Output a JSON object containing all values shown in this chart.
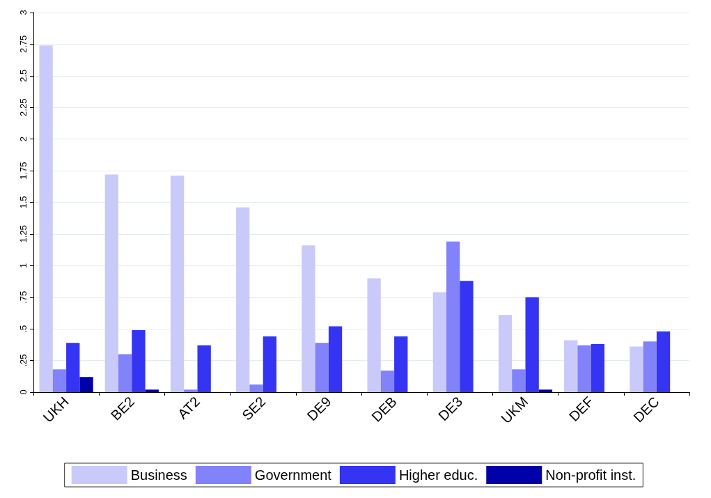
{
  "chart_data": {
    "type": "bar",
    "categories": [
      "UKH",
      "BE2",
      "AT2",
      "SE2",
      "DE9",
      "DEB",
      "DE3",
      "UKM",
      "DEF",
      "DEC"
    ],
    "series": [
      {
        "name": "Business",
        "color": "#cacafa",
        "values": [
          2.74,
          1.72,
          1.71,
          1.46,
          1.16,
          0.9,
          0.79,
          0.61,
          0.41,
          0.36
        ]
      },
      {
        "name": "Government",
        "color": "#8282fa",
        "values": [
          0.18,
          0.3,
          0.02,
          0.06,
          0.39,
          0.17,
          1.19,
          0.18,
          0.37,
          0.4
        ]
      },
      {
        "name": "Higher educ.",
        "color": "#3434f2",
        "values": [
          0.39,
          0.49,
          0.37,
          0.44,
          0.52,
          0.44,
          0.88,
          0.75,
          0.38,
          0.48
        ]
      },
      {
        "name": "Non-profit inst.",
        "color": "#0000a8",
        "values": [
          0.12,
          0.02,
          0,
          0,
          0,
          0,
          0,
          0.02,
          0,
          0
        ]
      }
    ],
    "ylim": [
      0,
      3
    ],
    "yticks": [
      0,
      {
        "value": 0.25,
        "label": ".25"
      },
      {
        "value": 0.5,
        "label": ".5"
      },
      {
        "value": 0.75,
        "label": ".75"
      },
      1,
      1.25,
      1.5,
      1.75,
      2,
      2.25,
      2.5,
      2.75,
      3
    ],
    "grid": "y",
    "legend": "bottom"
  }
}
